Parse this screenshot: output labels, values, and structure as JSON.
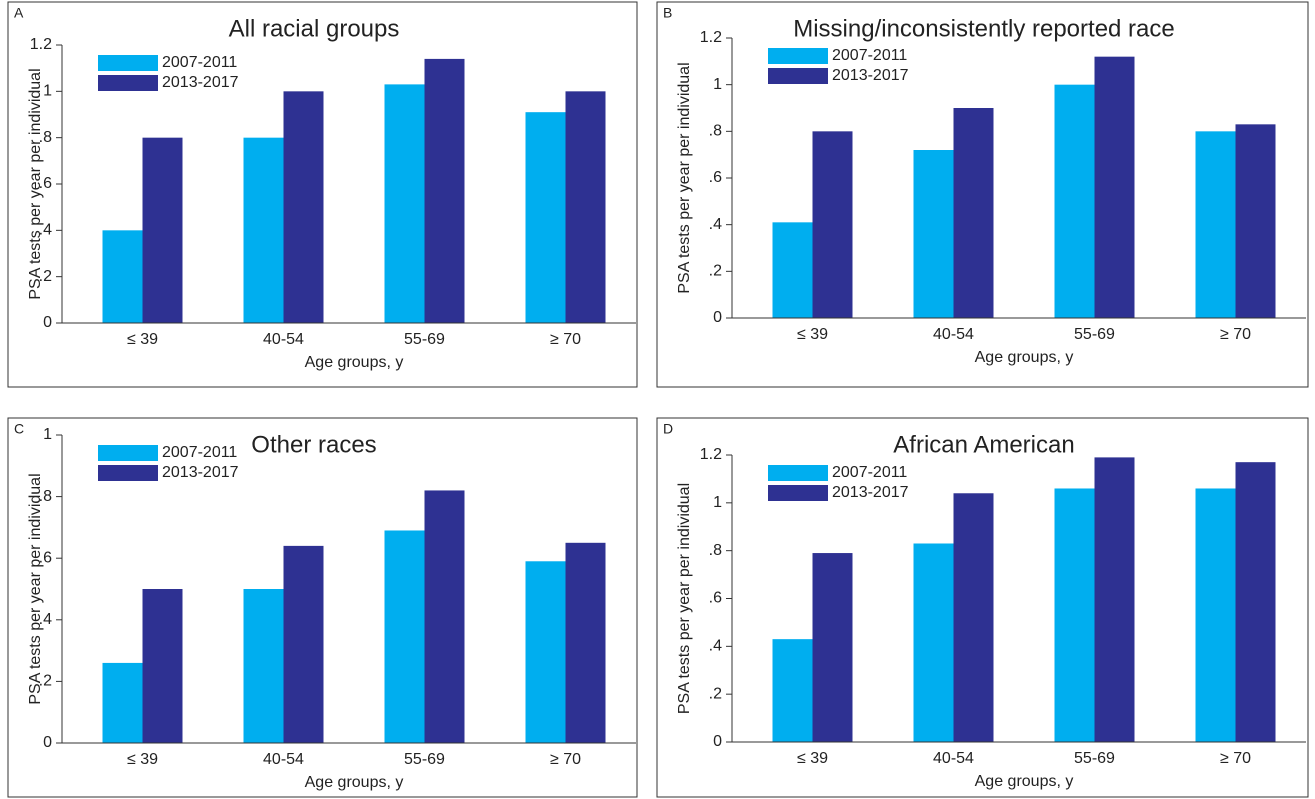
{
  "chart_data": [
    {
      "type": "bar",
      "panel": "A",
      "title": "All racial groups",
      "x_label": "Age groups, y",
      "y_label": "PSA tests per year per individual",
      "categories": [
        "≤ 39",
        "40-54",
        "55-69",
        "≥ 70"
      ],
      "series": [
        {
          "name": "2007-2011",
          "color": "#00aeef",
          "values": [
            0.4,
            0.8,
            1.03,
            0.91
          ]
        },
        {
          "name": "2013-2017",
          "color": "#2e3192",
          "values": [
            0.8,
            1.0,
            1.14,
            1.0
          ]
        }
      ],
      "ylim": [
        0,
        1.2
      ],
      "yticks": [
        0,
        {
          "value": 0.2,
          "label": ".2"
        },
        {
          "value": 0.4,
          "label": ".4"
        },
        {
          "value": 0.6,
          "label": ".6"
        },
        {
          "value": 0.8,
          "label": ".8"
        },
        1,
        1.2
      ]
    },
    {
      "type": "bar",
      "panel": "B",
      "title": "Missing/inconsistently reported race",
      "x_label": "Age groups, y",
      "y_label": "PSA tests per year per individual",
      "categories": [
        "≤ 39",
        "40-54",
        "55-69",
        "≥ 70"
      ],
      "series": [
        {
          "name": "2007-2011",
          "color": "#00aeef",
          "values": [
            0.41,
            0.72,
            1.0,
            0.8
          ]
        },
        {
          "name": "2013-2017",
          "color": "#2e3192",
          "values": [
            0.8,
            0.9,
            1.12,
            0.83
          ]
        }
      ],
      "ylim": [
        0,
        1.2
      ],
      "yticks": [
        0,
        {
          "value": 0.2,
          "label": ".2"
        },
        {
          "value": 0.4,
          "label": ".4"
        },
        {
          "value": 0.6,
          "label": ".6"
        },
        {
          "value": 0.8,
          "label": ".8"
        },
        1,
        1.2
      ]
    },
    {
      "type": "bar",
      "panel": "C",
      "title": "Other races",
      "x_label": "Age groups, y",
      "y_label": "PSA tests per year per individual",
      "categories": [
        "≤ 39",
        "40-54",
        "55-69",
        "≥ 70"
      ],
      "series": [
        {
          "name": "2007-2011",
          "color": "#00aeef",
          "values": [
            0.26,
            0.5,
            0.69,
            0.59
          ]
        },
        {
          "name": "2013-2017",
          "color": "#2e3192",
          "values": [
            0.5,
            0.64,
            0.82,
            0.65
          ]
        }
      ],
      "ylim": [
        0,
        1
      ],
      "yticks": [
        0,
        {
          "value": 0.2,
          "label": ".2"
        },
        {
          "value": 0.4,
          "label": ".4"
        },
        {
          "value": 0.6,
          "label": ".6"
        },
        {
          "value": 0.8,
          "label": ".8"
        },
        1
      ]
    },
    {
      "type": "bar",
      "panel": "D",
      "title": "African American",
      "x_label": "Age groups, y",
      "y_label": "PSA tests per year per individual",
      "categories": [
        "≤ 39",
        "40-54",
        "55-69",
        "≥ 70"
      ],
      "series": [
        {
          "name": "2007-2011",
          "color": "#00aeef",
          "values": [
            0.43,
            0.83,
            1.06,
            1.06
          ]
        },
        {
          "name": "2013-2017",
          "color": "#2e3192",
          "values": [
            0.79,
            1.04,
            1.19,
            1.17
          ]
        }
      ],
      "ylim": [
        0,
        1.2
      ],
      "yticks": [
        0,
        {
          "value": 0.2,
          "label": ".2"
        },
        {
          "value": 0.4,
          "label": ".4"
        },
        {
          "value": 0.6,
          "label": ".6"
        },
        {
          "value": 0.8,
          "label": ".8"
        },
        1,
        1.2
      ]
    }
  ]
}
